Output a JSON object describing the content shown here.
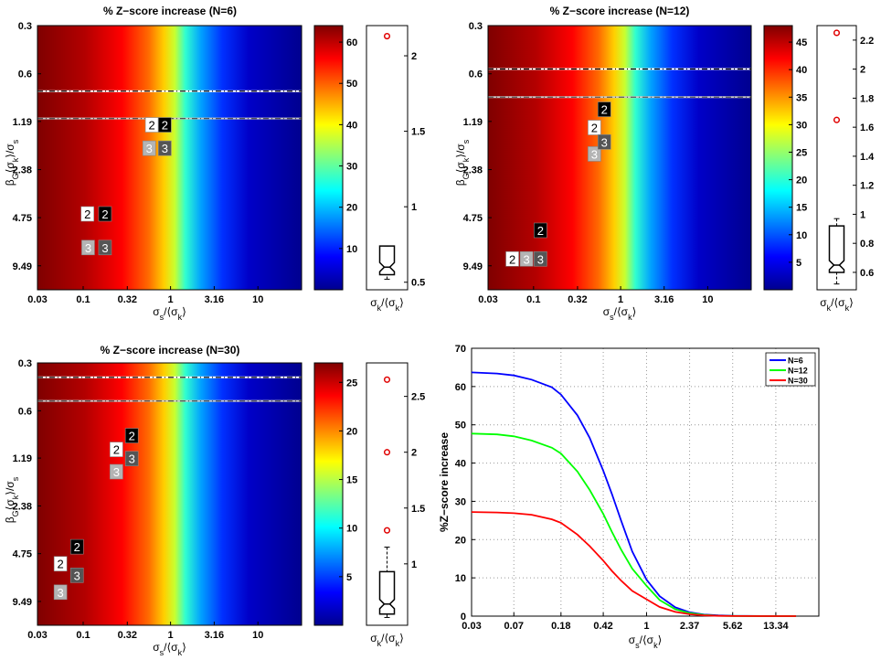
{
  "figure": {
    "background": "#ffffff"
  },
  "chart_data": [
    {
      "type": "heatmap",
      "title": "% Z−score increase (N=6)",
      "xlabel": "σs/⟨σk⟩",
      "ylabel": "βG⟨σk⟩/σs",
      "x_scale": "log",
      "xlim": [
        0.03,
        31.6
      ],
      "xticks": [
        "0.03",
        "0.1",
        "0.32",
        "1",
        "3.16",
        "10"
      ],
      "y_scale": "log",
      "ylim_top_to_bottom": [
        0.3,
        13.4
      ],
      "yticks": [
        "0.3",
        "0.6",
        "1.19",
        "2.38",
        "4.75",
        "9.49"
      ],
      "colormap": "jet",
      "colorbar_range": [
        0,
        64
      ],
      "colorbar_ticks": [
        "10",
        "20",
        "30",
        "40",
        "50",
        "60"
      ],
      "curves": [
        {
          "style": "white solid",
          "plateau_y": 0.77
        },
        {
          "style": "light gray solid",
          "plateau_y": 1.14
        },
        {
          "style": "black dash-dot",
          "plateau_y": 0.77
        },
        {
          "style": "gray dash-dot",
          "plateau_y": 1.14
        }
      ],
      "markers": [
        {
          "label": "2",
          "style": "white",
          "x": 0.61,
          "y": 1.25
        },
        {
          "label": "2",
          "style": "black",
          "x": 0.86,
          "y": 1.25
        },
        {
          "label": "3",
          "style": "light-gray",
          "x": 0.57,
          "y": 1.75
        },
        {
          "label": "3",
          "style": "dark-gray",
          "x": 0.86,
          "y": 1.75
        },
        {
          "label": "2",
          "style": "white",
          "x": 0.112,
          "y": 4.5
        },
        {
          "label": "2",
          "style": "black",
          "x": 0.178,
          "y": 4.5
        },
        {
          "label": "3",
          "style": "light-gray",
          "x": 0.114,
          "y": 7.3
        },
        {
          "label": "3",
          "style": "dark-gray",
          "x": 0.178,
          "y": 7.3
        }
      ],
      "boxplot": {
        "label": "σk/⟨σk⟩",
        "ylim": [
          0.45,
          2.2
        ],
        "ticks": [
          "0.5",
          "1",
          "1.5",
          "2"
        ],
        "q1": 0.55,
        "median": 0.6,
        "q3": 0.74,
        "whisker_low": 0.52,
        "whisker_high": 0.74,
        "outliers": [
          2.13
        ]
      }
    },
    {
      "type": "heatmap",
      "title": "% Z−score increase (N=12)",
      "xlabel": "σs/⟨σk⟩",
      "ylabel": "βG⟨σk⟩/σs",
      "x_scale": "log",
      "xlim": [
        0.03,
        31.6
      ],
      "xticks": [
        "0.03",
        "0.1",
        "0.32",
        "1",
        "3.16",
        "10"
      ],
      "y_scale": "log",
      "ylim_top_to_bottom": [
        0.3,
        13.4
      ],
      "yticks": [
        "0.3",
        "0.6",
        "1.19",
        "2.38",
        "4.75",
        "9.49"
      ],
      "colormap": "jet",
      "colorbar_range": [
        0,
        48
      ],
      "colorbar_ticks": [
        "5",
        "10",
        "15",
        "20",
        "25",
        "30",
        "35",
        "40",
        "45"
      ],
      "curves": [
        {
          "style": "white solid",
          "plateau_y": 0.56
        },
        {
          "style": "light gray solid",
          "plateau_y": 0.84
        },
        {
          "style": "black dash-dot",
          "plateau_y": 0.56
        },
        {
          "style": "gray dash-dot",
          "plateau_y": 0.84
        }
      ],
      "markers": [
        {
          "label": "2",
          "style": "white",
          "x": 0.5,
          "y": 1.3
        },
        {
          "label": "2",
          "style": "black",
          "x": 0.65,
          "y": 1.0
        },
        {
          "label": "3",
          "style": "light-gray",
          "x": 0.5,
          "y": 1.9
        },
        {
          "label": "3",
          "style": "dark-gray",
          "x": 0.65,
          "y": 1.6
        },
        {
          "label": "2",
          "style": "white",
          "x": 0.057,
          "y": 8.6
        },
        {
          "label": "2",
          "style": "black",
          "x": 0.12,
          "y": 5.7
        },
        {
          "label": "3",
          "style": "light-gray",
          "x": 0.083,
          "y": 8.6
        },
        {
          "label": "3",
          "style": "dark-gray",
          "x": 0.12,
          "y": 8.6
        }
      ],
      "boxplot": {
        "label": "σk/⟨σk⟩",
        "ylim": [
          0.48,
          2.3
        ],
        "ticks": [
          "0.6",
          "0.8",
          "1",
          "1.2",
          "1.4",
          "1.6",
          "1.8",
          "2",
          "2.2"
        ],
        "q1": 0.6,
        "median": 0.65,
        "q3": 0.92,
        "whisker_low": 0.52,
        "whisker_high": 0.97,
        "outliers": [
          2.25,
          1.65
        ]
      }
    },
    {
      "type": "heatmap",
      "title": "% Z−score increase (N=30)",
      "xlabel": "σs/⟨σk⟩",
      "ylabel": "βG⟨σk⟩/σs",
      "x_scale": "log",
      "xlim": [
        0.03,
        31.6
      ],
      "xticks": [
        "0.03",
        "0.1",
        "0.32",
        "1",
        "3.16",
        "10"
      ],
      "y_scale": "log",
      "ylim_top_to_bottom": [
        0.3,
        13.4
      ],
      "yticks": [
        "0.3",
        "0.6",
        "1.19",
        "2.38",
        "4.75",
        "9.49"
      ],
      "colormap": "jet",
      "colorbar_range": [
        0,
        27
      ],
      "colorbar_ticks": [
        "5",
        "10",
        "15",
        "20",
        "25"
      ],
      "curves": [
        {
          "style": "white solid",
          "plateau_y": 0.37
        },
        {
          "style": "light gray solid",
          "plateau_y": 0.52
        },
        {
          "style": "black dash-dot",
          "plateau_y": 0.37
        },
        {
          "style": "gray dash-dot",
          "plateau_y": 0.52
        }
      ],
      "markers": [
        {
          "label": "2",
          "style": "white",
          "x": 0.24,
          "y": 1.05
        },
        {
          "label": "2",
          "style": "black",
          "x": 0.36,
          "y": 0.86
        },
        {
          "label": "3",
          "style": "light-gray",
          "x": 0.24,
          "y": 1.45
        },
        {
          "label": "3",
          "style": "dark-gray",
          "x": 0.36,
          "y": 1.2
        },
        {
          "label": "2",
          "style": "white",
          "x": 0.055,
          "y": 5.5
        },
        {
          "label": "2",
          "style": "black",
          "x": 0.085,
          "y": 4.3
        },
        {
          "label": "3",
          "style": "light-gray",
          "x": 0.055,
          "y": 8.3
        },
        {
          "label": "3",
          "style": "dark-gray",
          "x": 0.085,
          "y": 6.5
        }
      ],
      "boxplot": {
        "label": "σk/⟨σk⟩",
        "ylim": [
          0.45,
          2.8
        ],
        "ticks": [
          "1",
          "1.5",
          "2",
          "2.5"
        ],
        "q1": 0.55,
        "median": 0.64,
        "q3": 0.93,
        "whisker_low": 0.52,
        "whisker_high": 1.15,
        "outliers": [
          2.65,
          2.0,
          1.3
        ]
      }
    },
    {
      "type": "line",
      "title": "",
      "xlabel": "σs/⟨σk⟩",
      "ylabel": "%Z−score increase",
      "x_scale": "log",
      "xlim": [
        0.03,
        31.6
      ],
      "xticks": [
        "0.03",
        "0.07",
        "0.18",
        "0.42",
        "1",
        "2.37",
        "5.62",
        "13.34"
      ],
      "ylim": [
        0,
        70
      ],
      "yticks": [
        "0",
        "10",
        "20",
        "30",
        "40",
        "50",
        "60",
        "70"
      ],
      "grid": true,
      "legend": "top-right",
      "series": [
        {
          "name": "N=6",
          "color": "#0000ff",
          "max": 64.0
        },
        {
          "name": "N=12",
          "color": "#00ff00",
          "max": 48.0
        },
        {
          "name": "N=30",
          "color": "#ff0000",
          "max": 27.2
        }
      ],
      "x": [
        0.03,
        0.05,
        0.07,
        0.1,
        0.15,
        0.18,
        0.25,
        0.32,
        0.42,
        0.5,
        0.6,
        0.75,
        1.0,
        1.3,
        1.78,
        2.37,
        3.16,
        4.22,
        5.62,
        10,
        13.34,
        20
      ],
      "y_N6": [
        63.7,
        63.4,
        62.9,
        61.8,
        59.8,
        57.9,
        52.5,
        46.6,
        38.0,
        31.9,
        25.0,
        16.9,
        9.5,
        5.2,
        2.3,
        1.0,
        0.4,
        0.2,
        0.08,
        0.02,
        0.01,
        0.0
      ],
      "y_N12": [
        47.7,
        47.5,
        47.0,
        45.9,
        44.0,
        42.5,
        37.8,
        33.0,
        26.7,
        22.0,
        17.4,
        12.4,
        7.9,
        4.2,
        1.8,
        0.8,
        0.3,
        0.1,
        0.05,
        0.01,
        0.0,
        0.0
      ],
      "y_N30": [
        27.2,
        27.1,
        26.9,
        26.5,
        25.3,
        24.4,
        21.3,
        18.3,
        14.5,
        11.8,
        9.3,
        6.6,
        4.4,
        2.4,
        1.1,
        0.5,
        0.2,
        0.08,
        0.03,
        0.01,
        0.0,
        0.0
      ]
    }
  ]
}
